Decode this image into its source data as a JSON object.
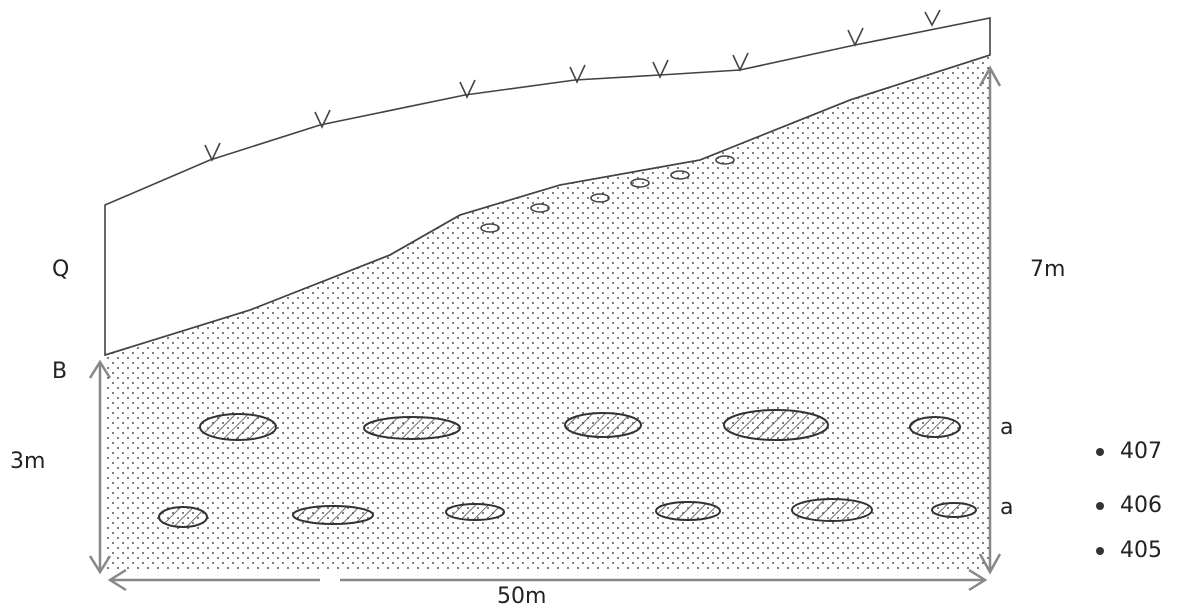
{
  "units": {
    "upper": "Q",
    "lower": "B"
  },
  "dimensions": {
    "lower_thickness": "3m",
    "total_thickness": "7m",
    "length": "50m"
  },
  "lens_layers": [
    "a",
    "a"
  ],
  "samples": [
    "407",
    "406",
    "405"
  ]
}
